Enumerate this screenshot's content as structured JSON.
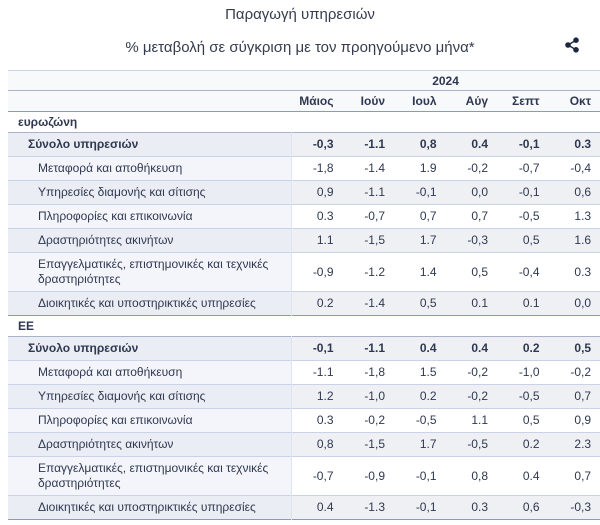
{
  "header": {
    "title": "Παραγωγή υπηρεσιών",
    "subtitle": "% μεταβολή σε σύγκριση με τον προηγούμενο μήνα*"
  },
  "icons": {
    "share": "share-icon"
  },
  "colors": {
    "text": "#2f3850",
    "header_text": "#363c4e",
    "header_bg": "#f8f9fb",
    "row_shade": "#eef0f4",
    "label_shade": "#ebedf4",
    "label_tint": "#f3f5fa",
    "border_light": "#c9d3e8",
    "border_strong": "#8e99b5",
    "icon": "#1c2740"
  },
  "chart_data": {
    "type": "table",
    "title": "Παραγωγή υπηρεσιών",
    "subtitle": "% μεταβολή σε σύγκριση με τον προηγούμενο μήνα*",
    "year_header": "2024",
    "columns": [
      "Μάιος",
      "Ιούν",
      "Ιουλ",
      "Αύγ",
      "Σεπτ",
      "Οκτ"
    ],
    "sections": [
      {
        "label": "ευρωζώνη",
        "rows": [
          {
            "label": "Σύνολο υπηρεσιών",
            "bold": true,
            "indent": 1,
            "values": [
              "-0,3",
              "-1.1",
              "0,8",
              "0.4",
              "-0,1",
              "0.3"
            ]
          },
          {
            "label": "Μεταφορά και αποθήκευση",
            "bold": false,
            "indent": 2,
            "values": [
              "-1,8",
              "-1.4",
              "1.9",
              "-0,2",
              "-0,7",
              "-0,4"
            ]
          },
          {
            "label": "Υπηρεσίες διαμονής και σίτισης",
            "bold": false,
            "indent": 2,
            "values": [
              "0,9",
              "-1.1",
              "-0,1",
              "0,0",
              "-0,1",
              "0,6"
            ]
          },
          {
            "label": "Πληροφορίες και επικοινωνία",
            "bold": false,
            "indent": 2,
            "values": [
              "0.3",
              "-0,7",
              "0,7",
              "0,7",
              "-0,5",
              "1.3"
            ]
          },
          {
            "label": "Δραστηριότητες ακινήτων",
            "bold": false,
            "indent": 2,
            "values": [
              "1.1",
              "-1,5",
              "1.7",
              "-0,3",
              "0,5",
              "1.6"
            ]
          },
          {
            "label": "Επαγγελματικές, επιστημονικές και τεχνικές δραστηριότητες",
            "bold": false,
            "indent": 2,
            "values": [
              "-0,9",
              "-1.2",
              "1.4",
              "0,5",
              "-0,4",
              "0.3"
            ]
          },
          {
            "label": "Διοικητικές και υποστηρικτικές υπηρεσίες",
            "bold": false,
            "indent": 2,
            "values": [
              "0.2",
              "-1.4",
              "0,5",
              "0.1",
              "0.1",
              "0,0"
            ]
          }
        ]
      },
      {
        "label": "ΕΕ",
        "rows": [
          {
            "label": "Σύνολο υπηρεσιών",
            "bold": true,
            "indent": 1,
            "values": [
              "-0,1",
              "-1.1",
              "0.4",
              "0.4",
              "0.2",
              "0,5"
            ]
          },
          {
            "label": "Μεταφορά και αποθήκευση",
            "bold": false,
            "indent": 2,
            "values": [
              "-1.1",
              "-1,8",
              "1.5",
              "-0,2",
              "-1,0",
              "-0,2"
            ]
          },
          {
            "label": "Υπηρεσίες διαμονής και σίτισης",
            "bold": false,
            "indent": 2,
            "values": [
              "1.2",
              "-1,0",
              "0.2",
              "-0,2",
              "-0,5",
              "0,7"
            ]
          },
          {
            "label": "Πληροφορίες και επικοινωνία",
            "bold": false,
            "indent": 2,
            "values": [
              "0.3",
              "-0,2",
              "-0,5",
              "1.1",
              "0,5",
              "0,9"
            ]
          },
          {
            "label": "Δραστηριότητες ακινήτων",
            "bold": false,
            "indent": 2,
            "values": [
              "0,8",
              "-1,5",
              "1.7",
              "-0,5",
              "0.2",
              "2.3"
            ]
          },
          {
            "label": "Επαγγελματικές, επιστημονικές και τεχνικές δραστηριότητες",
            "bold": false,
            "indent": 2,
            "values": [
              "-0,7",
              "-0,9",
              "-0,1",
              "0,8",
              "0.4",
              "0,7"
            ]
          },
          {
            "label": "Διοικητικές και υποστηρικτικές υπηρεσίες",
            "bold": false,
            "indent": 2,
            "values": [
              "0.4",
              "-1.3",
              "-0,1",
              "0.3",
              "0,6",
              "-0,3"
            ]
          }
        ]
      }
    ]
  }
}
